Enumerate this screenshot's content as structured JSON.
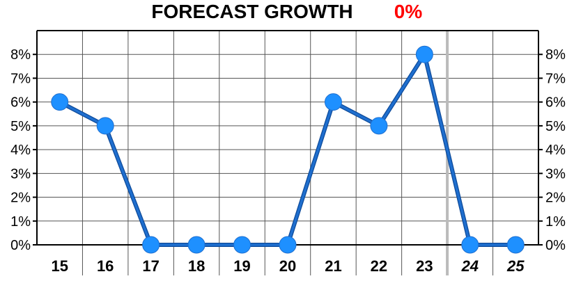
{
  "title": {
    "main": "FORECAST GROWTH",
    "accent": "0%"
  },
  "colors": {
    "line": "#1f6fcf",
    "marker": "#1e90ff",
    "accent": "#ff0000",
    "grid": "#555555",
    "forecast_divider": "#bbbbbb"
  },
  "chart_data": {
    "type": "line",
    "title": "FORECAST GROWTH 0%",
    "categories": [
      "15",
      "16",
      "17",
      "18",
      "19",
      "20",
      "21",
      "22",
      "23",
      "24",
      "25"
    ],
    "forecast_categories": [
      "24",
      "25"
    ],
    "values": [
      6,
      5,
      0,
      0,
      0,
      0,
      6,
      5,
      8,
      0,
      0
    ],
    "y_unit": "%",
    "ylim": [
      0,
      9
    ],
    "y_ticks": [
      "0%",
      "1%",
      "2%",
      "3%",
      "4%",
      "5%",
      "6%",
      "7%",
      "8%"
    ],
    "y_tick_values": [
      0,
      1,
      2,
      3,
      4,
      5,
      6,
      7,
      8
    ],
    "xlabel": "",
    "ylabel": "",
    "grid": true,
    "y_axis_both_sides": true,
    "legend": "none"
  }
}
